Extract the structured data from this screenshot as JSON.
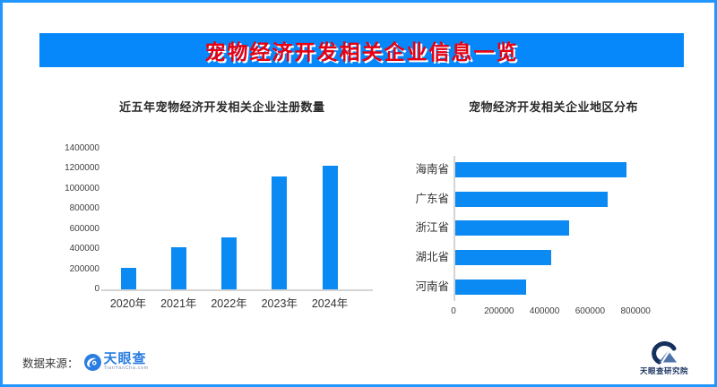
{
  "page": {
    "border_color": "#2196ff",
    "background_color": "#ffffff"
  },
  "banner": {
    "title": "宠物经济开发相关企业信息一览",
    "background_color": "#0688fb",
    "title_color": "#e60012"
  },
  "footer": {
    "source_label": "数据来源：",
    "tianyancha": {
      "name": "天眼查",
      "subtext": "TianYanCha.com",
      "brand_color": "#2a7de1"
    },
    "institute": {
      "name": "天眼查研究院",
      "brand_color": "#16305e"
    }
  },
  "chart_data": [
    {
      "type": "bar",
      "orientation": "vertical",
      "title": "近五年宠物经济开发相关企业注册数量",
      "categories": [
        "2020年",
        "2021年",
        "2022年",
        "2023年",
        "2024年"
      ],
      "values": [
        210000,
        420000,
        520000,
        1120000,
        1230000
      ],
      "xlabel": "",
      "ylabel": "",
      "ylim": [
        0,
        1400000
      ],
      "yticks": [
        0,
        200000,
        400000,
        600000,
        800000,
        1000000,
        1200000,
        1400000
      ],
      "grid": false,
      "legend": false,
      "bar_color": "#0a8af2"
    },
    {
      "type": "bar",
      "orientation": "horizontal",
      "title": "宠物经济开发相关企业地区分布",
      "categories": [
        "海南省",
        "广东省",
        "浙江省",
        "湖北省",
        "河南省"
      ],
      "values": [
        750000,
        670000,
        500000,
        420000,
        310000
      ],
      "xlabel": "",
      "ylabel": "",
      "xlim": [
        0,
        800000
      ],
      "xticks": [
        0,
        200000,
        400000,
        600000,
        800000
      ],
      "grid": false,
      "legend": false,
      "bar_color": "#0a8af2"
    }
  ]
}
